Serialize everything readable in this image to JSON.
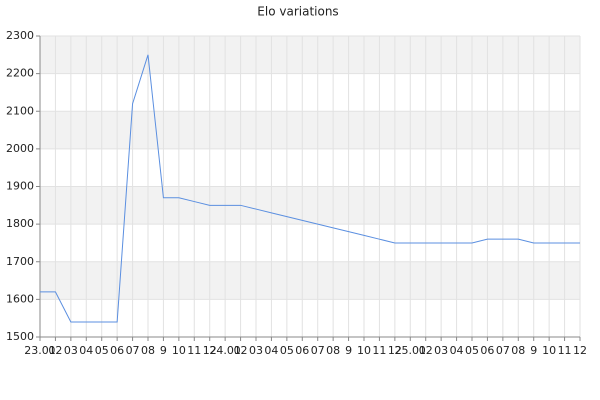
{
  "chart_data": {
    "type": "line",
    "title": "Elo variations",
    "categories": [
      "23.01",
      "02",
      "03",
      "04",
      "05",
      "06",
      "07",
      "08",
      "9",
      "10",
      "11",
      "12",
      "24.01",
      "02",
      "03",
      "04",
      "05",
      "06",
      "07",
      "08",
      "9",
      "10",
      "11",
      "12",
      "25.01",
      "02",
      "03",
      "04",
      "05",
      "06",
      "07",
      "08",
      "9",
      "10",
      "11",
      "12"
    ],
    "series": [
      {
        "name": "Elo",
        "color": "#5b8fe0",
        "values": [
          1620,
          1620,
          1540,
          1540,
          1540,
          1540,
          2120,
          2250,
          1870,
          1870,
          1860,
          1850,
          1850,
          1850,
          1840,
          1830,
          1820,
          1810,
          1800,
          1790,
          1780,
          1770,
          1760,
          1750,
          1750,
          1750,
          1750,
          1750,
          1750,
          1760,
          1760,
          1760,
          1750,
          1750,
          1750,
          1750
        ]
      }
    ],
    "ylim": [
      1500,
      2300
    ],
    "yticks": [
      1500,
      1600,
      1700,
      1800,
      1900,
      2000,
      2100,
      2200,
      2300
    ],
    "grid": true
  }
}
